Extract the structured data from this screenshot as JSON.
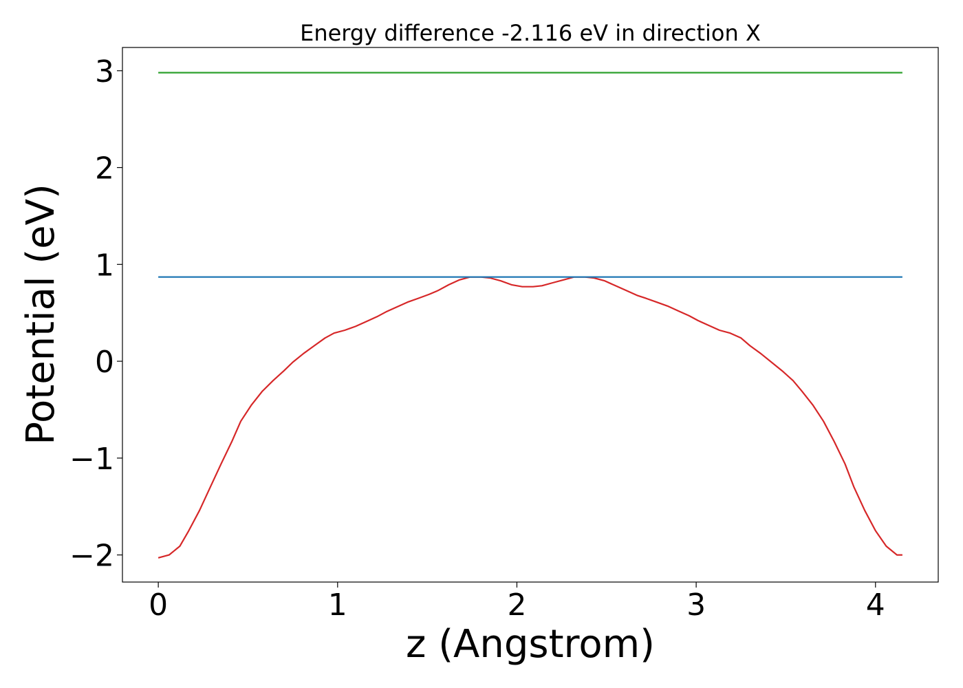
{
  "chart_data": {
    "type": "line",
    "title": "Energy difference -2.116 eV in direction X",
    "xlabel": "z (Angstrom)",
    "ylabel": "Potential (eV)",
    "xlim": [
      -0.2,
      4.35
    ],
    "ylim": [
      -2.28,
      3.24
    ],
    "x_ticks": [
      0,
      1,
      2,
      3,
      4
    ],
    "x_tick_labels": [
      "0",
      "1",
      "2",
      "3",
      "4"
    ],
    "y_ticks": [
      -2,
      -1,
      0,
      1,
      2,
      3
    ],
    "y_tick_labels": [
      "−2",
      "−1",
      "0",
      "1",
      "2",
      "3"
    ],
    "grid": false,
    "series": [
      {
        "color": "#d62728",
        "x": [
          0,
          0.06,
          0.12,
          0.17,
          0.23,
          0.29,
          0.35,
          0.41,
          0.46,
          0.52,
          0.58,
          0.64,
          0.7,
          0.75,
          0.81,
          0.87,
          0.93,
          0.98,
          1.04,
          1.1,
          1.16,
          1.22,
          1.27,
          1.33,
          1.39,
          1.45,
          1.51,
          1.56,
          1.62,
          1.68,
          1.74,
          1.8,
          1.85,
          1.91,
          1.97,
          2.03,
          2.09,
          2.14,
          2.2,
          2.26,
          2.32,
          2.38,
          2.43,
          2.49,
          2.55,
          2.61,
          2.67,
          2.72,
          2.78,
          2.84,
          2.9,
          2.96,
          3.01,
          3.07,
          3.13,
          3.19,
          3.25,
          3.3,
          3.36,
          3.42,
          3.48,
          3.54,
          3.59,
          3.65,
          3.71,
          3.77,
          3.83,
          3.88,
          3.94,
          4.0,
          4.06,
          4.12,
          4.15
        ],
        "y": [
          -2.03,
          -2.0,
          -1.91,
          -1.75,
          -1.54,
          -1.3,
          -1.06,
          -0.83,
          -0.62,
          -0.45,
          -0.31,
          -0.2,
          -0.1,
          -0.01,
          0.08,
          0.16,
          0.24,
          0.29,
          0.32,
          0.36,
          0.41,
          0.46,
          0.51,
          0.56,
          0.61,
          0.65,
          0.69,
          0.73,
          0.79,
          0.84,
          0.87,
          0.87,
          0.86,
          0.83,
          0.79,
          0.77,
          0.77,
          0.78,
          0.81,
          0.84,
          0.87,
          0.87,
          0.86,
          0.83,
          0.78,
          0.73,
          0.68,
          0.65,
          0.61,
          0.57,
          0.52,
          0.47,
          0.42,
          0.37,
          0.32,
          0.29,
          0.24,
          0.16,
          0.08,
          -0.01,
          -0.1,
          -0.2,
          -0.31,
          -0.45,
          -0.62,
          -0.83,
          -1.06,
          -1.3,
          -1.54,
          -1.75,
          -1.91,
          -2.0,
          -2.0
        ]
      },
      {
        "color": "#1f77b4",
        "x": [
          0,
          4.15
        ],
        "y": [
          0.87,
          0.87
        ]
      },
      {
        "color": "#2ca02c",
        "x": [
          0,
          4.15
        ],
        "y": [
          2.98,
          2.98
        ]
      }
    ]
  }
}
